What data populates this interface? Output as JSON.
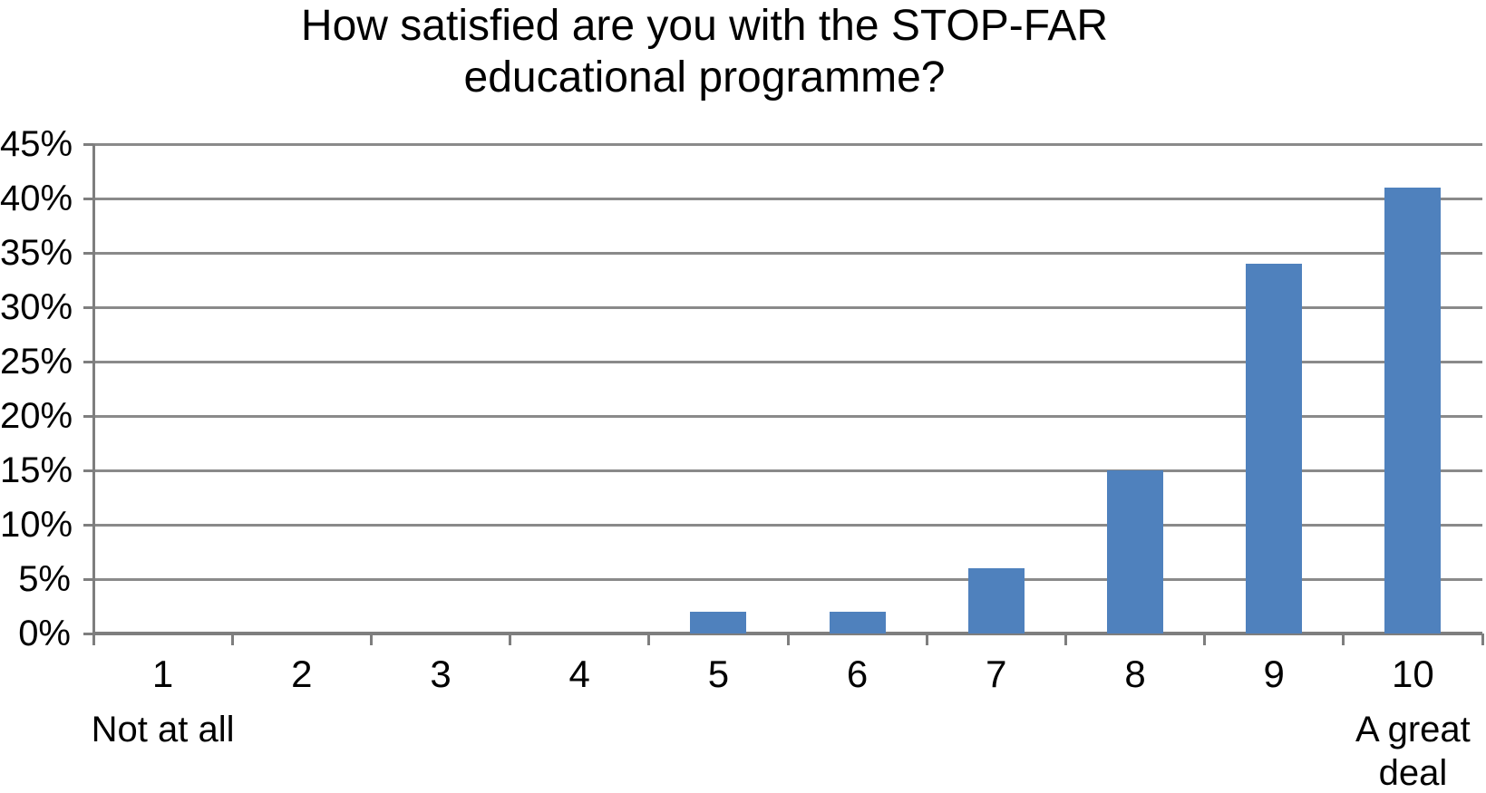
{
  "title": {
    "full": "How satisfied are you with the STOP-FAR educational programme?",
    "lines": [
      "How satisfied are you with the STOP-FAR",
      "educational programme?"
    ]
  },
  "chart_data": {
    "type": "bar",
    "title": "How satisfied are you with the STOP-FAR educational programme?",
    "categories": [
      "1",
      "2",
      "3",
      "4",
      "5",
      "6",
      "7",
      "8",
      "9",
      "10"
    ],
    "values": [
      0,
      0,
      0,
      0,
      2,
      2,
      6,
      15,
      34,
      41
    ],
    "value_unit": "%",
    "xlabel": "",
    "ylabel": "",
    "ylim": [
      0,
      45
    ],
    "ytick_step": 5,
    "ytick_labels": [
      "0%",
      "5%",
      "10%",
      "15%",
      "20%",
      "25%",
      "30%",
      "35%",
      "40%",
      "45%"
    ],
    "x_axis_sublabels": [
      {
        "category": "1",
        "label": "Not at all"
      },
      {
        "category": "10",
        "label": "A great deal"
      }
    ],
    "grid": true,
    "legend_position": "none",
    "colors": {
      "bar": "#4F81BD",
      "gridline": "#8A8A8A",
      "axis": "#7E7E7E",
      "text": "#000000",
      "background": "#FFFFFF"
    }
  }
}
